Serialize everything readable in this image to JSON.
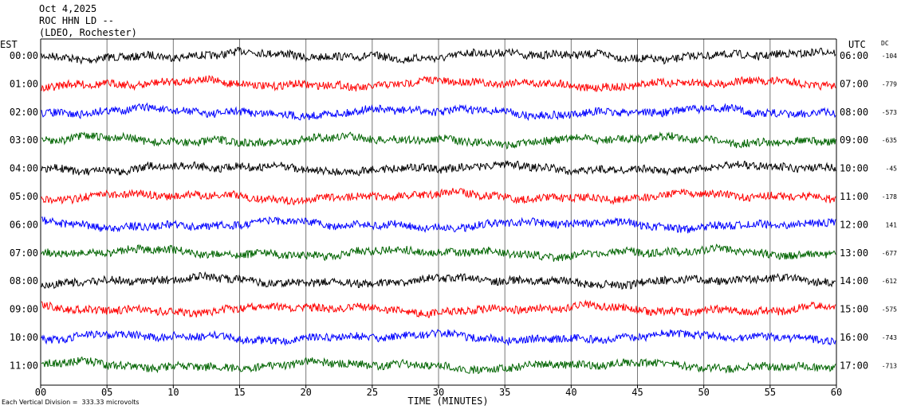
{
  "header": {
    "date": "Oct 4,2025",
    "station": "ROC HHN LD --",
    "network": "(LDEO, Rochester)"
  },
  "footnote": "Each Vertical Division =  333.33 microvolts",
  "chart_data": {
    "type": "line",
    "title": "",
    "xlabel": "TIME (MINUTES)",
    "left_axis_label": "EST",
    "right_axis_label": "UTC",
    "dc_label": "DC",
    "xlim": [
      0,
      60
    ],
    "x_ticks": [
      "00",
      "05",
      "10",
      "15",
      "20",
      "25",
      "30",
      "35",
      "40",
      "45",
      "50",
      "55",
      "60"
    ],
    "grid": "vertical lines every 5 minutes",
    "rows": [
      {
        "est": "00:00",
        "utc": "06:00",
        "dc": "-104",
        "color": "#000000"
      },
      {
        "est": "01:00",
        "utc": "07:00",
        "dc": "-779",
        "color": "#ff0000"
      },
      {
        "est": "02:00",
        "utc": "08:00",
        "dc": "-573",
        "color": "#0000ff"
      },
      {
        "est": "03:00",
        "utc": "09:00",
        "dc": "-635",
        "color": "#006400"
      },
      {
        "est": "04:00",
        "utc": "10:00",
        "dc": "-45",
        "color": "#000000"
      },
      {
        "est": "05:00",
        "utc": "11:00",
        "dc": "-178",
        "color": "#ff0000"
      },
      {
        "est": "06:00",
        "utc": "12:00",
        "dc": "141",
        "color": "#0000ff"
      },
      {
        "est": "07:00",
        "utc": "13:00",
        "dc": "-677",
        "color": "#006400"
      },
      {
        "est": "08:00",
        "utc": "14:00",
        "dc": "-612",
        "color": "#000000"
      },
      {
        "est": "09:00",
        "utc": "15:00",
        "dc": "-575",
        "color": "#ff0000"
      },
      {
        "est": "10:00",
        "utc": "16:00",
        "dc": "-743",
        "color": "#0000ff"
      },
      {
        "est": "11:00",
        "utc": "17:00",
        "dc": "-713",
        "color": "#006400"
      }
    ]
  }
}
